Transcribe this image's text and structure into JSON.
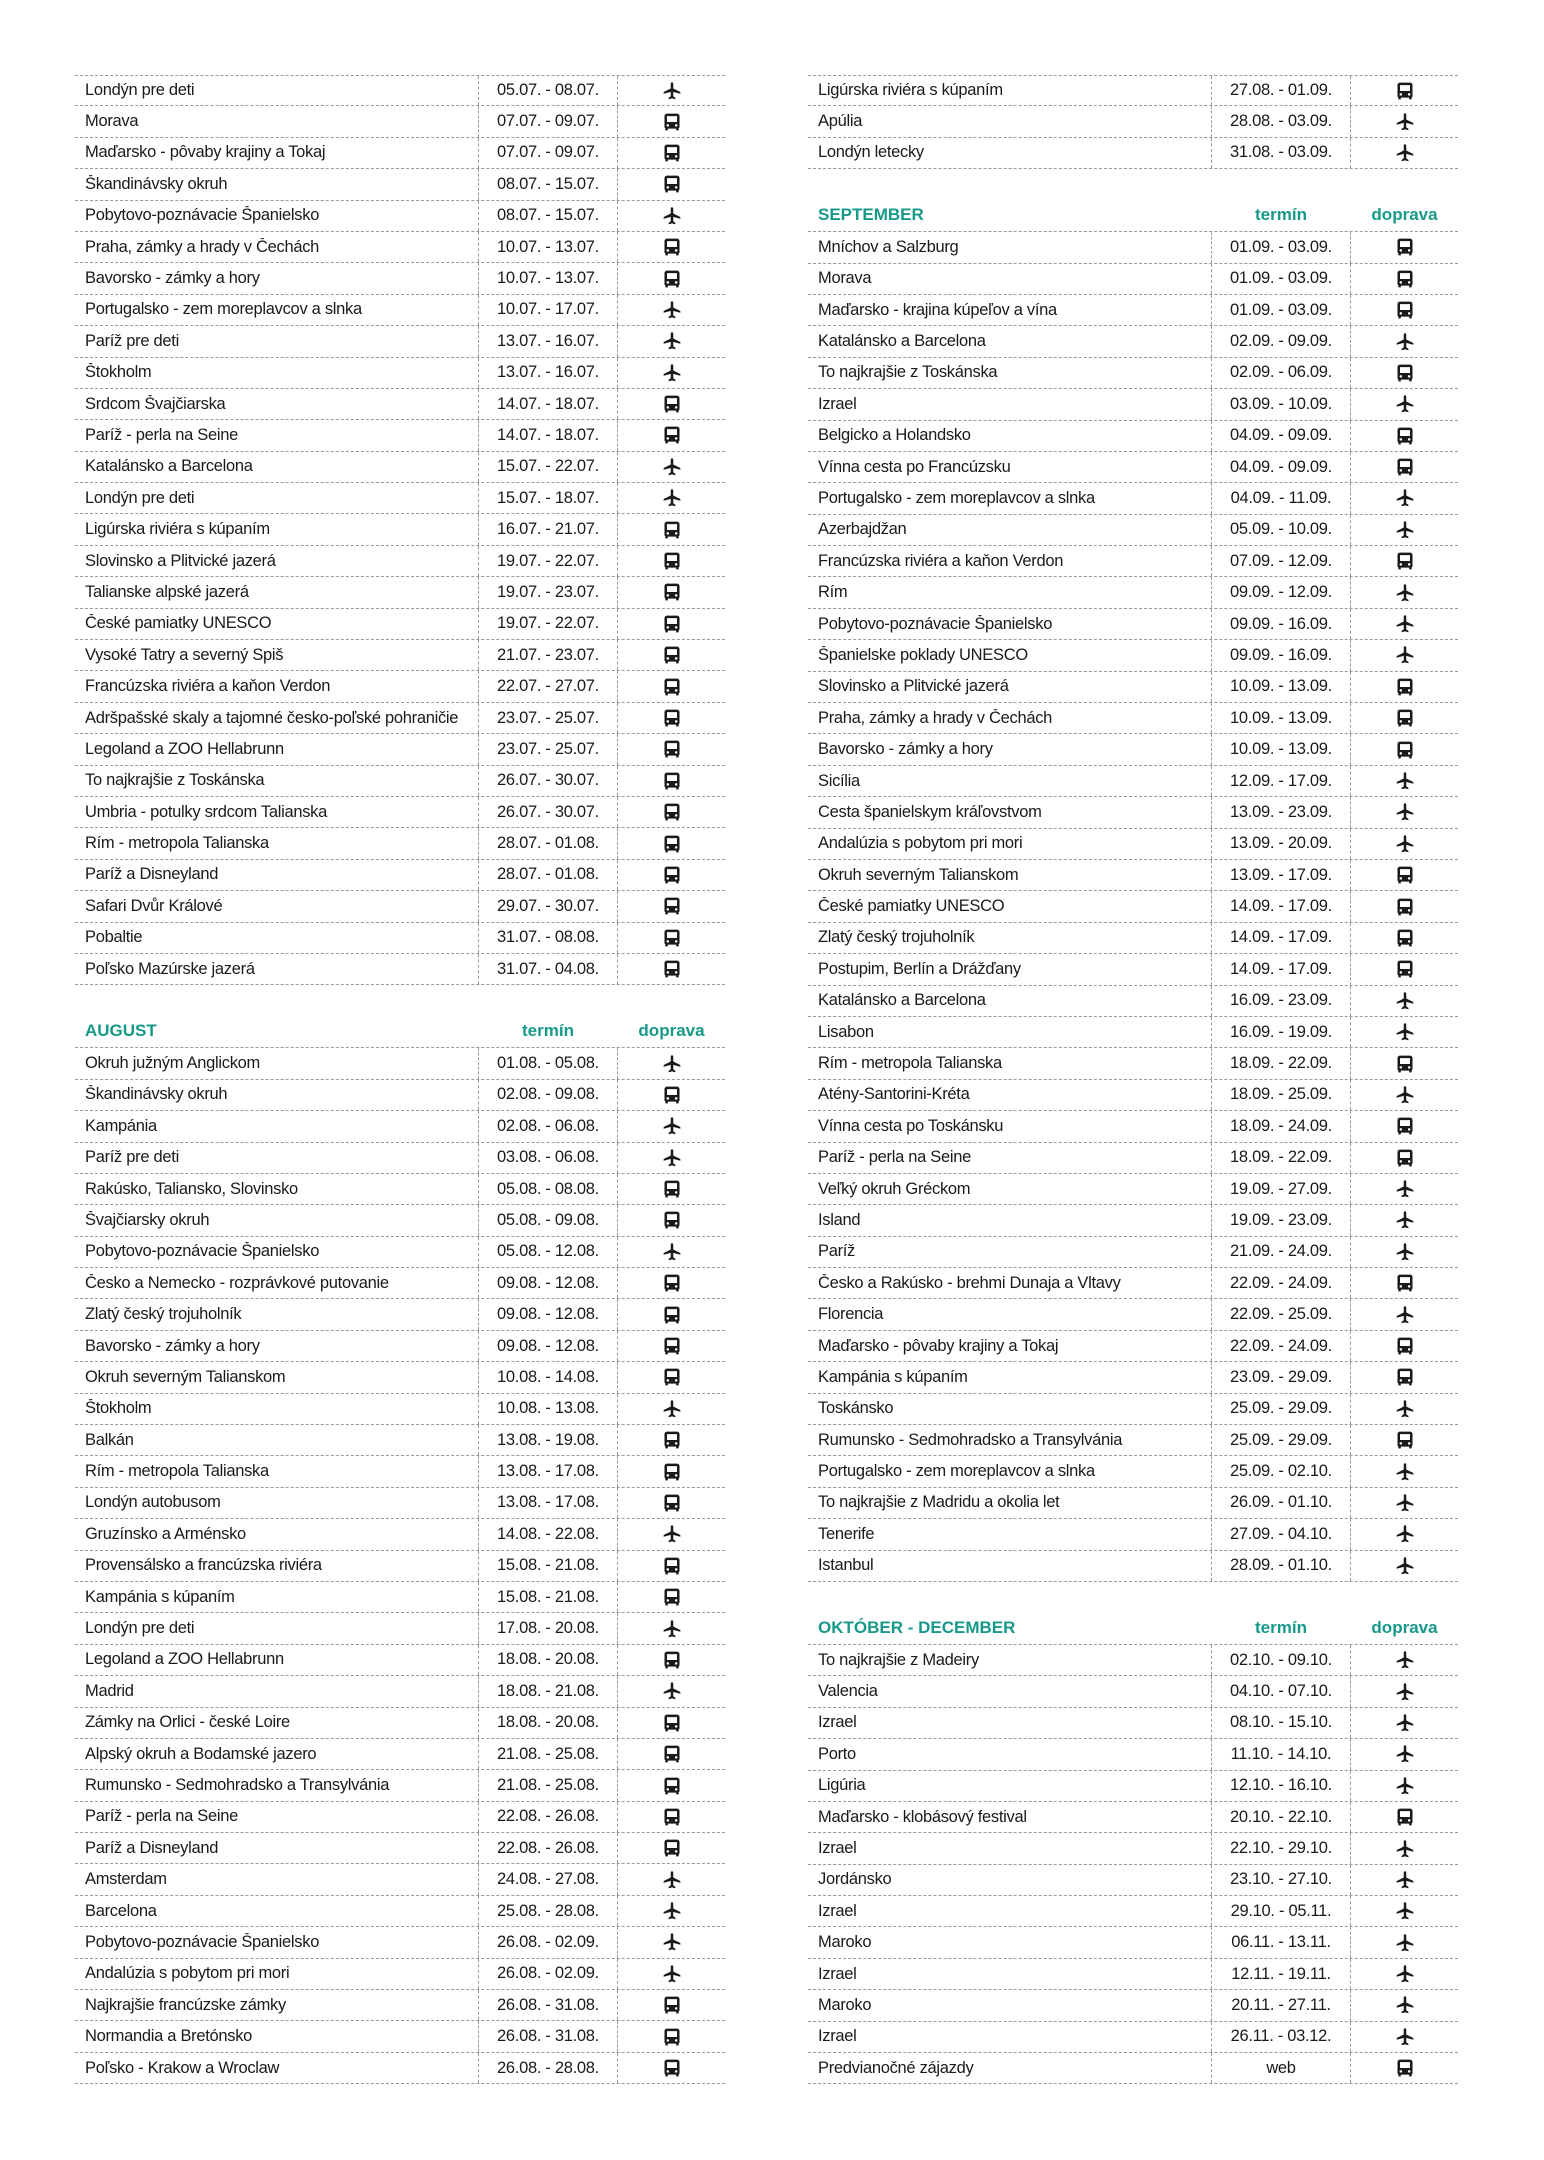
{
  "colors": {
    "accent": "#17998a",
    "text": "#1a1a1a",
    "rule": "#9a9a9a"
  },
  "columns": {
    "date": "termín",
    "transport": "doprava"
  },
  "icons": {
    "plane": "plane-icon",
    "bus": "bus-icon"
  },
  "left": [
    {
      "title": "",
      "rows": [
        [
          "Londýn pre deti",
          "05.07. - 08.07.",
          "plane"
        ],
        [
          "Morava",
          "07.07. - 09.07.",
          "bus"
        ],
        [
          "Maďarsko - pôvaby krajiny a Tokaj",
          "07.07. - 09.07.",
          "bus"
        ],
        [
          "Škandinávsky okruh",
          "08.07. - 15.07.",
          "bus"
        ],
        [
          "Pobytovo-poznávacie Španielsko",
          "08.07. - 15.07.",
          "plane"
        ],
        [
          "Praha, zámky a hrady v Čechách",
          "10.07. - 13.07.",
          "bus"
        ],
        [
          "Bavorsko - zámky a hory",
          "10.07. - 13.07.",
          "bus"
        ],
        [
          "Portugalsko - zem moreplavcov a slnka",
          "10.07. - 17.07.",
          "plane"
        ],
        [
          "Paríž pre deti",
          "13.07. - 16.07.",
          "plane"
        ],
        [
          "Štokholm",
          "13.07. - 16.07.",
          "plane"
        ],
        [
          "Srdcom Švajčiarska",
          "14.07. - 18.07.",
          "bus"
        ],
        [
          "Paríž - perla na Seine",
          "14.07. - 18.07.",
          "bus"
        ],
        [
          "Katalánsko a Barcelona",
          "15.07. - 22.07.",
          "plane"
        ],
        [
          "Londýn pre deti",
          "15.07. - 18.07.",
          "plane"
        ],
        [
          "Ligúrska riviéra s kúpaním",
          "16.07. - 21.07.",
          "bus"
        ],
        [
          "Slovinsko a Plitvické jazerá",
          "19.07. - 22.07.",
          "bus"
        ],
        [
          "Talianske alpské jazerá",
          "19.07. - 23.07.",
          "bus"
        ],
        [
          "České pamiatky UNESCO",
          "19.07. - 22.07.",
          "bus"
        ],
        [
          "Vysoké Tatry a severný Spiš",
          "21.07. - 23.07.",
          "bus"
        ],
        [
          "Francúzska riviéra a kaňon Verdon",
          "22.07. - 27.07.",
          "bus"
        ],
        [
          "Adršpašské skaly a tajomné česko-poľské pohraničie",
          "23.07. - 25.07.",
          "bus"
        ],
        [
          "Legoland a ZOO Hellabrunn",
          "23.07. - 25.07.",
          "bus"
        ],
        [
          "To najkrajšie z Toskánska",
          "26.07. - 30.07.",
          "bus"
        ],
        [
          "Umbria - potulky srdcom Talianska",
          "26.07. - 30.07.",
          "bus"
        ],
        [
          "Rím - metropola Talianska",
          "28.07. - 01.08.",
          "bus"
        ],
        [
          "Paríž a Disneyland",
          "28.07. - 01.08.",
          "bus"
        ],
        [
          "Safari Dvůr Králové",
          "29.07. - 30.07.",
          "bus"
        ],
        [
          "Pobaltie",
          "31.07. - 08.08.",
          "bus"
        ],
        [
          "Poľsko Mazúrske jazerá",
          "31.07. - 04.08.",
          "bus"
        ]
      ]
    },
    {
      "title": "AUGUST",
      "rows": [
        [
          "Okruh južným Anglickom",
          "01.08. - 05.08.",
          "plane"
        ],
        [
          "Škandinávsky okruh",
          "02.08. - 09.08.",
          "bus"
        ],
        [
          "Kampánia",
          "02.08. - 06.08.",
          "plane"
        ],
        [
          "Paríž pre deti",
          "03.08. - 06.08.",
          "plane"
        ],
        [
          "Rakúsko, Taliansko, Slovinsko",
          "05.08. - 08.08.",
          "bus"
        ],
        [
          "Švajčiarsky okruh",
          "05.08. - 09.08.",
          "bus"
        ],
        [
          "Pobytovo-poznávacie Španielsko",
          "05.08. - 12.08.",
          "plane"
        ],
        [
          "Česko a Nemecko - rozprávkové putovanie",
          "09.08. - 12.08.",
          "bus"
        ],
        [
          "Zlatý český trojuholník",
          "09.08. - 12.08.",
          "bus"
        ],
        [
          "Bavorsko - zámky a hory",
          "09.08. - 12.08.",
          "bus"
        ],
        [
          "Okruh severným Talianskom",
          "10.08. - 14.08.",
          "bus"
        ],
        [
          "Štokholm",
          "10.08. - 13.08.",
          "plane"
        ],
        [
          "Balkán",
          "13.08. - 19.08.",
          "bus"
        ],
        [
          "Rím - metropola Talianska",
          "13.08. - 17.08.",
          "bus"
        ],
        [
          "Londýn autobusom",
          "13.08. - 17.08.",
          "bus"
        ],
        [
          "Gruzínsko a Arménsko",
          "14.08. - 22.08.",
          "plane"
        ],
        [
          "Provensálsko a francúzska riviéra",
          "15.08. - 21.08.",
          "bus"
        ],
        [
          "Kampánia s kúpaním",
          "15.08. - 21.08.",
          "bus"
        ],
        [
          "Londýn pre deti",
          "17.08. - 20.08.",
          "plane"
        ],
        [
          "Legoland a ZOO Hellabrunn",
          "18.08. - 20.08.",
          "bus"
        ],
        [
          "Madrid",
          "18.08. - 21.08.",
          "plane"
        ],
        [
          "Zámky na Orlici - české Loire",
          "18.08. - 20.08.",
          "bus"
        ],
        [
          "Alpský okruh a Bodamské jazero",
          "21.08. - 25.08.",
          "bus"
        ],
        [
          "Rumunsko - Sedmohradsko a Transylvánia",
          "21.08. - 25.08.",
          "bus"
        ],
        [
          "Paríž - perla na Seine",
          "22.08. - 26.08.",
          "bus"
        ],
        [
          "Paríž a Disneyland",
          "22.08. - 26.08.",
          "bus"
        ],
        [
          "Amsterdam",
          "24.08. - 27.08.",
          "plane"
        ],
        [
          "Barcelona",
          "25.08. - 28.08.",
          "plane"
        ],
        [
          "Pobytovo-poznávacie Španielsko",
          "26.08. - 02.09.",
          "plane"
        ],
        [
          "Andalúzia s pobytom pri mori",
          "26.08. - 02.09.",
          "plane"
        ],
        [
          "Najkrajšie francúzske zámky",
          "26.08. - 31.08.",
          "bus"
        ],
        [
          "Normandia a Bretónsko",
          "26.08. - 31.08.",
          "bus"
        ],
        [
          "Poľsko - Krakow a Wroclaw",
          "26.08. - 28.08.",
          "bus"
        ]
      ]
    }
  ],
  "right": [
    {
      "title": "",
      "rows": [
        [
          "Ligúrska riviéra s kúpaním",
          "27.08. - 01.09.",
          "bus"
        ],
        [
          "Apúlia",
          "28.08. - 03.09.",
          "plane"
        ],
        [
          "Londýn letecky",
          "31.08. - 03.09.",
          "plane"
        ]
      ]
    },
    {
      "title": "SEPTEMBER",
      "rows": [
        [
          "Mníchov a Salzburg",
          "01.09. - 03.09.",
          "bus"
        ],
        [
          "Morava",
          "01.09. - 03.09.",
          "bus"
        ],
        [
          "Maďarsko - krajina kúpeľov a vína",
          "01.09. - 03.09.",
          "bus"
        ],
        [
          "Katalánsko a Barcelona",
          "02.09. - 09.09.",
          "plane"
        ],
        [
          "To najkrajšie z Toskánska",
          "02.09. - 06.09.",
          "bus"
        ],
        [
          "Izrael",
          "03.09. - 10.09.",
          "plane"
        ],
        [
          "Belgicko a Holandsko",
          "04.09. - 09.09.",
          "bus"
        ],
        [
          "Vínna cesta po Francúzsku",
          "04.09. - 09.09.",
          "bus"
        ],
        [
          "Portugalsko - zem moreplavcov a slnka",
          "04.09. - 11.09.",
          "plane"
        ],
        [
          "Azerbajdžan",
          "05.09. - 10.09.",
          "plane"
        ],
        [
          "Francúzska riviéra a kaňon Verdon",
          "07.09. - 12.09.",
          "bus"
        ],
        [
          "Rím",
          "09.09. - 12.09.",
          "plane"
        ],
        [
          "Pobytovo-poznávacie Španielsko",
          "09.09. - 16.09.",
          "plane"
        ],
        [
          "Španielske poklady UNESCO",
          "09.09. - 16.09.",
          "plane"
        ],
        [
          "Slovinsko a Plitvické jazerá",
          "10.09. - 13.09.",
          "bus"
        ],
        [
          "Praha, zámky a hrady v Čechách",
          "10.09. - 13.09.",
          "bus"
        ],
        [
          "Bavorsko - zámky a hory",
          "10.09. - 13.09.",
          "bus"
        ],
        [
          "Sicília",
          "12.09. - 17.09.",
          "plane"
        ],
        [
          "Cesta španielskym kráľovstvom",
          "13.09. - 23.09.",
          "plane"
        ],
        [
          "Andalúzia s pobytom pri mori",
          "13.09. - 20.09.",
          "plane"
        ],
        [
          "Okruh severným Talianskom",
          "13.09. - 17.09.",
          "bus"
        ],
        [
          "České pamiatky UNESCO",
          "14.09. - 17.09.",
          "bus"
        ],
        [
          "Zlatý český trojuholník",
          "14.09. - 17.09.",
          "bus"
        ],
        [
          "Postupim, Berlín a Drážďany",
          "14.09. - 17.09.",
          "bus"
        ],
        [
          "Katalánsko a Barcelona",
          "16.09. - 23.09.",
          "plane"
        ],
        [
          "Lisabon",
          "16.09. - 19.09.",
          "plane"
        ],
        [
          "Rím - metropola Talianska",
          "18.09. - 22.09.",
          "bus"
        ],
        [
          "Atény-Santorini-Kréta",
          "18.09. - 25.09.",
          "plane"
        ],
        [
          "Vínna cesta po Toskánsku",
          "18.09. - 24.09.",
          "bus"
        ],
        [
          "Paríž - perla na Seine",
          "18.09. - 22.09.",
          "bus"
        ],
        [
          "Veľký okruh Gréckom",
          "19.09. - 27.09.",
          "plane"
        ],
        [
          "Island",
          "19.09. - 23.09.",
          "plane"
        ],
        [
          "Paríž",
          "21.09. - 24.09.",
          "plane"
        ],
        [
          "Česko a Rakúsko - brehmi Dunaja a Vltavy",
          "22.09. - 24.09.",
          "bus"
        ],
        [
          "Florencia",
          "22.09. - 25.09.",
          "plane"
        ],
        [
          "Maďarsko - pôvaby krajiny a Tokaj",
          "22.09. - 24.09.",
          "bus"
        ],
        [
          "Kampánia s kúpaním",
          "23.09. - 29.09.",
          "bus"
        ],
        [
          "Toskánsko",
          "25.09. - 29.09.",
          "plane"
        ],
        [
          "Rumunsko - Sedmohradsko a Transylvánia",
          "25.09. - 29.09.",
          "bus"
        ],
        [
          "Portugalsko - zem moreplavcov a slnka",
          "25.09. - 02.10.",
          "plane"
        ],
        [
          "To najkrajšie z Madridu a okolia let",
          "26.09. - 01.10.",
          "plane"
        ],
        [
          "Tenerife",
          "27.09. - 04.10.",
          "plane"
        ],
        [
          "Istanbul",
          "28.09. - 01.10.",
          "plane"
        ]
      ]
    },
    {
      "title": "OKTÓBER - DECEMBER",
      "rows": [
        [
          "To najkrajšie z Madeiry",
          "02.10. - 09.10.",
          "plane"
        ],
        [
          "Valencia",
          "04.10. - 07.10.",
          "plane"
        ],
        [
          "Izrael",
          "08.10. - 15.10.",
          "plane"
        ],
        [
          "Porto",
          "11.10. - 14.10.",
          "plane"
        ],
        [
          "Ligúria",
          "12.10. - 16.10.",
          "plane"
        ],
        [
          "Maďarsko - klobásový festival",
          "20.10. - 22.10.",
          "bus"
        ],
        [
          "Izrael",
          "22.10. - 29.10.",
          "plane"
        ],
        [
          "Jordánsko",
          "23.10. - 27.10.",
          "plane"
        ],
        [
          "Izrael",
          "29.10. - 05.11.",
          "plane"
        ],
        [
          "Maroko",
          "06.11. - 13.11.",
          "plane"
        ],
        [
          "Izrael",
          "12.11. - 19.11.",
          "plane"
        ],
        [
          "Maroko",
          "20.11. - 27.11.",
          "plane"
        ],
        [
          "Izrael",
          "26.11. - 03.12.",
          "plane"
        ],
        [
          "Predvianočné zájazdy",
          "web",
          "bus"
        ]
      ]
    }
  ]
}
